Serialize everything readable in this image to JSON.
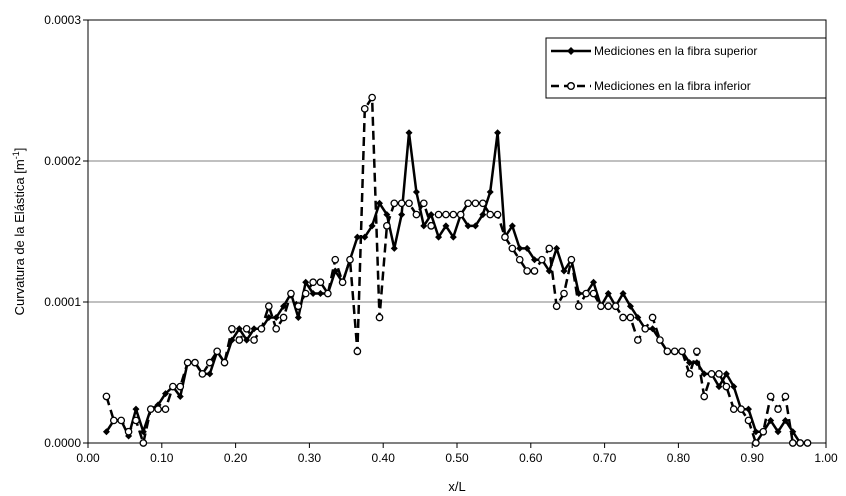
{
  "chart_data": {
    "type": "line",
    "xlabel": "x/L",
    "ylabel": "Curvatura de la Elástica",
    "ylabel_unit_base": "m",
    "ylabel_unit_exp": "-1",
    "xlim": [
      0.0,
      1.0
    ],
    "ylim": [
      0.0,
      0.0003
    ],
    "x_ticks": [
      "0.00",
      "0.10",
      "0.20",
      "0.30",
      "0.40",
      "0.50",
      "0.60",
      "0.70",
      "0.80",
      "0.90",
      "1.00"
    ],
    "y_ticks": [
      "0.0000",
      "0.0001",
      "0.0002",
      "0.0003"
    ],
    "grid": "horizontal",
    "legend_position": "top-right",
    "series": [
      {
        "name": "Mediciones en la fibra superior",
        "marker": "filled-diamond",
        "line": "solid",
        "x": [
          0.025,
          0.035,
          0.045,
          0.055,
          0.065,
          0.075,
          0.085,
          0.095,
          0.105,
          0.115,
          0.125,
          0.135,
          0.145,
          0.155,
          0.165,
          0.175,
          0.185,
          0.195,
          0.205,
          0.215,
          0.225,
          0.235,
          0.245,
          0.255,
          0.265,
          0.275,
          0.285,
          0.295,
          0.305,
          0.315,
          0.325,
          0.335,
          0.345,
          0.355,
          0.365,
          0.375,
          0.385,
          0.395,
          0.405,
          0.415,
          0.425,
          0.435,
          0.445,
          0.455,
          0.465,
          0.475,
          0.485,
          0.495,
          0.505,
          0.515,
          0.525,
          0.535,
          0.545,
          0.555,
          0.565,
          0.575,
          0.585,
          0.595,
          0.605,
          0.615,
          0.625,
          0.635,
          0.645,
          0.655,
          0.665,
          0.675,
          0.685,
          0.695,
          0.705,
          0.715,
          0.725,
          0.735,
          0.745,
          0.755,
          0.765,
          0.775,
          0.785,
          0.795,
          0.805,
          0.815,
          0.825,
          0.835,
          0.845,
          0.855,
          0.865,
          0.875,
          0.885,
          0.895,
          0.905,
          0.915,
          0.925,
          0.935,
          0.945,
          0.955,
          0.965,
          0.975
        ],
        "y": [
          8e-06,
          1.6e-05,
          1.6e-05,
          5e-06,
          2.4e-05,
          8e-06,
          2.4e-05,
          2.7e-05,
          3.5e-05,
          4e-05,
          3.3e-05,
          5.7e-05,
          5.7e-05,
          4.9e-05,
          4.9e-05,
          6.5e-05,
          5.7e-05,
          7.3e-05,
          8.1e-05,
          7.3e-05,
          8.1e-05,
          8.1e-05,
          8.9e-05,
          8.9e-05,
          9.7e-05,
          0.000106,
          8.9e-05,
          0.000114,
          0.000106,
          0.000106,
          0.000106,
          0.000122,
          0.000114,
          0.00013,
          0.000146,
          0.000146,
          0.000154,
          0.00017,
          0.000162,
          0.000138,
          0.000162,
          0.00022,
          0.000178,
          0.000154,
          0.000162,
          0.000146,
          0.000154,
          0.000146,
          0.000162,
          0.000154,
          0.000154,
          0.000162,
          0.000178,
          0.00022,
          0.000146,
          0.000154,
          0.000138,
          0.000138,
          0.00013,
          0.00013,
          0.000122,
          0.000138,
          0.000122,
          0.00013,
          0.000106,
          0.000106,
          0.000114,
          9.7e-05,
          0.000106,
          9.7e-05,
          0.000106,
          9.7e-05,
          8.9e-05,
          8.1e-05,
          8.1e-05,
          7.3e-05,
          6.5e-05,
          6.5e-05,
          6.5e-05,
          5.7e-05,
          5.7e-05,
          4.9e-05,
          4.9e-05,
          4e-05,
          4.9e-05,
          4e-05,
          2.4e-05,
          2.4e-05,
          8e-06,
          8e-06,
          1.6e-05,
          8e-06,
          1.6e-05,
          8e-06,
          0.0,
          0.0
        ]
      },
      {
        "name": "Mediciones en la fibra inferior",
        "marker": "open-circle",
        "line": "dashed",
        "x": [
          0.025,
          0.035,
          0.045,
          0.055,
          0.065,
          0.075,
          0.085,
          0.095,
          0.105,
          0.115,
          0.125,
          0.135,
          0.145,
          0.155,
          0.165,
          0.175,
          0.185,
          0.195,
          0.205,
          0.215,
          0.225,
          0.235,
          0.245,
          0.255,
          0.265,
          0.275,
          0.285,
          0.295,
          0.305,
          0.315,
          0.325,
          0.335,
          0.345,
          0.355,
          0.365,
          0.375,
          0.385,
          0.395,
          0.405,
          0.415,
          0.425,
          0.435,
          0.445,
          0.455,
          0.465,
          0.475,
          0.485,
          0.495,
          0.505,
          0.515,
          0.525,
          0.535,
          0.545,
          0.555,
          0.565,
          0.575,
          0.585,
          0.595,
          0.605,
          0.615,
          0.625,
          0.635,
          0.645,
          0.655,
          0.665,
          0.675,
          0.685,
          0.695,
          0.705,
          0.715,
          0.725,
          0.735,
          0.745,
          0.755,
          0.765,
          0.775,
          0.785,
          0.795,
          0.805,
          0.815,
          0.825,
          0.835,
          0.845,
          0.855,
          0.865,
          0.875,
          0.885,
          0.895,
          0.905,
          0.915,
          0.925,
          0.935,
          0.945,
          0.955,
          0.965,
          0.975
        ],
        "y": [
          3.3e-05,
          1.6e-05,
          1.6e-05,
          8e-06,
          1.6e-05,
          0.0,
          2.4e-05,
          2.4e-05,
          2.4e-05,
          4e-05,
          4e-05,
          5.7e-05,
          5.7e-05,
          4.9e-05,
          5.7e-05,
          6.5e-05,
          5.7e-05,
          8.1e-05,
          7.3e-05,
          8.1e-05,
          7.3e-05,
          8.1e-05,
          9.7e-05,
          8.1e-05,
          8.9e-05,
          0.000106,
          9.7e-05,
          0.000106,
          0.000114,
          0.000114,
          0.000106,
          0.00013,
          0.000114,
          0.00013,
          6.5e-05,
          0.000237,
          0.000245,
          8.9e-05,
          0.000154,
          0.00017,
          0.00017,
          0.00017,
          0.000162,
          0.00017,
          0.000154,
          0.000162,
          0.000162,
          0.000162,
          0.000162,
          0.00017,
          0.00017,
          0.00017,
          0.000162,
          0.000162,
          0.000146,
          0.000138,
          0.00013,
          0.000122,
          0.000122,
          0.00013,
          0.000138,
          9.7e-05,
          0.000106,
          0.00013,
          9.7e-05,
          0.000106,
          0.000106,
          9.7e-05,
          9.7e-05,
          9.7e-05,
          8.9e-05,
          8.9e-05,
          7.3e-05,
          8.1e-05,
          8.9e-05,
          7.3e-05,
          6.5e-05,
          6.5e-05,
          6.5e-05,
          4.9e-05,
          6.5e-05,
          3.3e-05,
          4.9e-05,
          4.9e-05,
          4e-05,
          2.4e-05,
          2.4e-05,
          1.6e-05,
          0.0,
          8e-06,
          3.3e-05,
          2.4e-05,
          3.3e-05,
          0.0,
          0.0,
          0.0
        ]
      }
    ]
  }
}
